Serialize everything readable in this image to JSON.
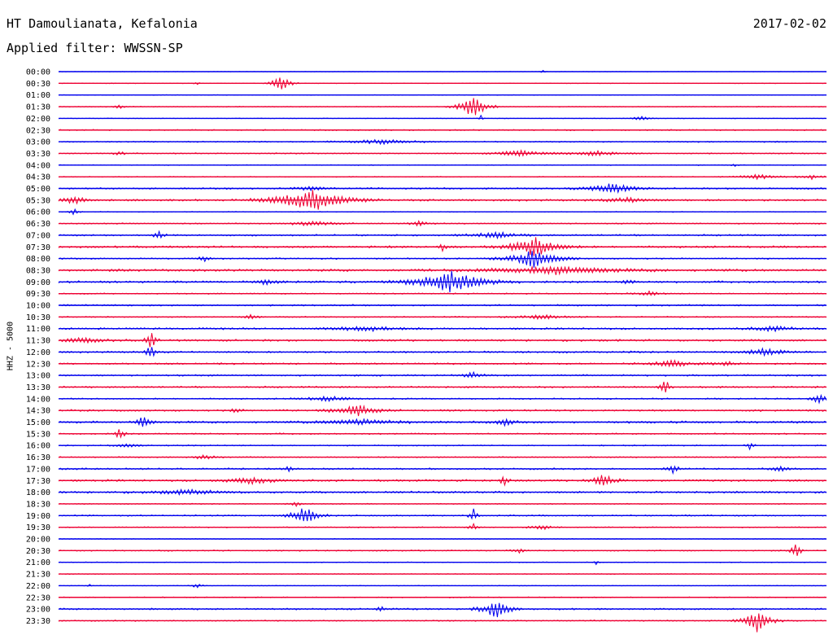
{
  "header": {
    "station": "HT Damoulianata, Kefalonia",
    "date": "2017-02-02",
    "filter": "Applied filter: WWSSN-SP"
  },
  "chart_data": {
    "type": "line",
    "title": "HT Damoulianata, Kefalonia",
    "ylabel": "HHZ - 5000",
    "row_labels": [
      "00:00",
      "00:30",
      "01:00",
      "01:30",
      "02:00",
      "02:30",
      "03:00",
      "03:30",
      "04:00",
      "04:30",
      "05:00",
      "05:30",
      "06:00",
      "06:30",
      "07:00",
      "07:30",
      "08:00",
      "08:30",
      "09:00",
      "09:30",
      "10:00",
      "10:30",
      "11:00",
      "11:30",
      "12:00",
      "12:30",
      "13:00",
      "13:30",
      "14:00",
      "14:30",
      "15:00",
      "15:30",
      "16:00",
      "16:30",
      "17:00",
      "17:30",
      "18:00",
      "18:30",
      "19:00",
      "19:30",
      "20:00",
      "20:30",
      "21:00",
      "21:30",
      "22:00",
      "22:30",
      "23:00",
      "23:30"
    ],
    "colors": [
      "#0000ee",
      "#ee0033"
    ],
    "rows": [
      {
        "noise": 0.2,
        "events": [
          {
            "t": 0.63,
            "a": 3,
            "d": 0.002
          }
        ]
      },
      {
        "noise": 0.3,
        "events": [
          {
            "t": 0.29,
            "a": 12,
            "d": 0.008
          },
          {
            "t": 0.18,
            "a": 3,
            "d": 0.002
          }
        ]
      },
      {
        "noise": 0.3,
        "events": []
      },
      {
        "noise": 0.4,
        "events": [
          {
            "t": 0.54,
            "a": 15,
            "d": 0.012
          },
          {
            "t": 0.08,
            "a": 3,
            "d": 0.004
          }
        ]
      },
      {
        "noise": 0.3,
        "events": [
          {
            "t": 0.76,
            "a": 3,
            "d": 0.008
          },
          {
            "t": 0.55,
            "a": 4,
            "d": 0.002
          }
        ]
      },
      {
        "noise": 0.6,
        "events": []
      },
      {
        "noise": 0.6,
        "events": [
          {
            "t": 0.42,
            "a": 3,
            "d": 0.03
          }
        ]
      },
      {
        "noise": 0.6,
        "events": [
          {
            "t": 0.6,
            "a": 4,
            "d": 0.02
          },
          {
            "t": 0.7,
            "a": 3,
            "d": 0.025
          },
          {
            "t": 0.08,
            "a": 2,
            "d": 0.006
          }
        ]
      },
      {
        "noise": 0.4,
        "events": [
          {
            "t": 0.88,
            "a": 3,
            "d": 0.002
          }
        ]
      },
      {
        "noise": 0.4,
        "events": [
          {
            "t": 0.91,
            "a": 3,
            "d": 0.02
          },
          {
            "t": 0.98,
            "a": 3,
            "d": 0.01
          }
        ]
      },
      {
        "noise": 0.8,
        "events": [
          {
            "t": 0.72,
            "a": 7,
            "d": 0.02
          },
          {
            "t": 0.33,
            "a": 4,
            "d": 0.01
          }
        ]
      },
      {
        "noise": 1.0,
        "events": [
          {
            "t": 0.33,
            "a": 15,
            "d": 0.03
          },
          {
            "t": 0.02,
            "a": 5,
            "d": 0.01
          },
          {
            "t": 0.74,
            "a": 3,
            "d": 0.02
          }
        ]
      },
      {
        "noise": 0.4,
        "events": [
          {
            "t": 0.02,
            "a": 4,
            "d": 0.004
          }
        ]
      },
      {
        "noise": 0.6,
        "events": [
          {
            "t": 0.33,
            "a": 3,
            "d": 0.02
          },
          {
            "t": 0.47,
            "a": 3,
            "d": 0.01
          }
        ]
      },
      {
        "noise": 0.8,
        "events": [
          {
            "t": 0.13,
            "a": 7,
            "d": 0.004
          },
          {
            "t": 0.57,
            "a": 4,
            "d": 0.02
          }
        ]
      },
      {
        "noise": 1.0,
        "events": [
          {
            "t": 0.62,
            "a": 14,
            "d": 0.02
          },
          {
            "t": 0.5,
            "a": 4,
            "d": 0.005
          }
        ]
      },
      {
        "noise": 0.7,
        "events": [
          {
            "t": 0.62,
            "a": 12,
            "d": 0.02
          },
          {
            "t": 0.19,
            "a": 4,
            "d": 0.005
          }
        ]
      },
      {
        "noise": 1.2,
        "events": [
          {
            "t": 0.65,
            "a": 5,
            "d": 0.05
          }
        ]
      },
      {
        "noise": 1.0,
        "events": [
          {
            "t": 0.51,
            "a": 14,
            "d": 0.03
          },
          {
            "t": 0.27,
            "a": 4,
            "d": 0.01
          },
          {
            "t": 0.74,
            "a": 4,
            "d": 0.005
          }
        ]
      },
      {
        "noise": 0.6,
        "events": [
          {
            "t": 0.77,
            "a": 3,
            "d": 0.01
          }
        ]
      },
      {
        "noise": 0.8,
        "events": []
      },
      {
        "noise": 0.6,
        "events": [
          {
            "t": 0.25,
            "a": 4,
            "d": 0.005
          },
          {
            "t": 0.63,
            "a": 3,
            "d": 0.02
          }
        ]
      },
      {
        "noise": 0.9,
        "events": [
          {
            "t": 0.4,
            "a": 3,
            "d": 0.03
          },
          {
            "t": 0.93,
            "a": 3,
            "d": 0.02
          }
        ]
      },
      {
        "noise": 1.0,
        "events": [
          {
            "t": 0.12,
            "a": 14,
            "d": 0.004
          },
          {
            "t": 0.03,
            "a": 3,
            "d": 0.02
          }
        ]
      },
      {
        "noise": 0.9,
        "events": [
          {
            "t": 0.12,
            "a": 10,
            "d": 0.004
          },
          {
            "t": 0.92,
            "a": 5,
            "d": 0.015
          }
        ]
      },
      {
        "noise": 0.8,
        "events": [
          {
            "t": 0.8,
            "a": 4,
            "d": 0.02
          },
          {
            "t": 0.87,
            "a": 3,
            "d": 0.01
          }
        ]
      },
      {
        "noise": 0.8,
        "events": [
          {
            "t": 0.54,
            "a": 4,
            "d": 0.01
          }
        ]
      },
      {
        "noise": 0.8,
        "events": [
          {
            "t": 0.79,
            "a": 11,
            "d": 0.004
          }
        ]
      },
      {
        "noise": 0.7,
        "events": [
          {
            "t": 0.99,
            "a": 6,
            "d": 0.006
          },
          {
            "t": 0.35,
            "a": 3,
            "d": 0.02
          }
        ]
      },
      {
        "noise": 0.9,
        "events": [
          {
            "t": 0.39,
            "a": 7,
            "d": 0.02
          },
          {
            "t": 0.23,
            "a": 3,
            "d": 0.005
          }
        ]
      },
      {
        "noise": 1.0,
        "events": [
          {
            "t": 0.11,
            "a": 9,
            "d": 0.006
          },
          {
            "t": 0.39,
            "a": 4,
            "d": 0.03
          },
          {
            "t": 0.58,
            "a": 4,
            "d": 0.01
          }
        ]
      },
      {
        "noise": 0.7,
        "events": [
          {
            "t": 0.08,
            "a": 8,
            "d": 0.004
          }
        ]
      },
      {
        "noise": 0.6,
        "events": [
          {
            "t": 0.9,
            "a": 6,
            "d": 0.003
          },
          {
            "t": 0.09,
            "a": 3,
            "d": 0.01
          }
        ]
      },
      {
        "noise": 0.6,
        "events": [
          {
            "t": 0.19,
            "a": 3,
            "d": 0.01
          }
        ]
      },
      {
        "noise": 0.8,
        "events": [
          {
            "t": 0.8,
            "a": 5,
            "d": 0.006
          },
          {
            "t": 0.94,
            "a": 3,
            "d": 0.01
          },
          {
            "t": 0.3,
            "a": 3,
            "d": 0.005
          }
        ]
      },
      {
        "noise": 1.0,
        "events": [
          {
            "t": 0.58,
            "a": 9,
            "d": 0.003
          },
          {
            "t": 0.71,
            "a": 8,
            "d": 0.01
          },
          {
            "t": 0.25,
            "a": 4,
            "d": 0.02
          }
        ]
      },
      {
        "noise": 1.0,
        "events": [
          {
            "t": 0.17,
            "a": 3,
            "d": 0.03
          }
        ]
      },
      {
        "noise": 0.5,
        "events": [
          {
            "t": 0.31,
            "a": 3,
            "d": 0.005
          }
        ]
      },
      {
        "noise": 0.7,
        "events": [
          {
            "t": 0.32,
            "a": 12,
            "d": 0.012
          },
          {
            "t": 0.54,
            "a": 12,
            "d": 0.003
          }
        ]
      },
      {
        "noise": 0.5,
        "events": [
          {
            "t": 0.54,
            "a": 5,
            "d": 0.004
          },
          {
            "t": 0.63,
            "a": 3,
            "d": 0.01
          }
        ]
      },
      {
        "noise": 0.4,
        "events": []
      },
      {
        "noise": 0.6,
        "events": [
          {
            "t": 0.96,
            "a": 12,
            "d": 0.004
          },
          {
            "t": 0.6,
            "a": 3,
            "d": 0.006
          }
        ]
      },
      {
        "noise": 0.4,
        "events": [
          {
            "t": 0.7,
            "a": 4,
            "d": 0.002
          }
        ]
      },
      {
        "noise": 0.4,
        "events": []
      },
      {
        "noise": 0.3,
        "events": [
          {
            "t": 0.18,
            "a": 3,
            "d": 0.005
          },
          {
            "t": 0.04,
            "a": 2,
            "d": 0.002
          }
        ]
      },
      {
        "noise": 0.5,
        "events": []
      },
      {
        "noise": 0.8,
        "events": [
          {
            "t": 0.57,
            "a": 14,
            "d": 0.012
          },
          {
            "t": 0.42,
            "a": 4,
            "d": 0.004
          }
        ]
      },
      {
        "noise": 0.6,
        "events": [
          {
            "t": 0.91,
            "a": 14,
            "d": 0.012
          }
        ]
      }
    ]
  }
}
